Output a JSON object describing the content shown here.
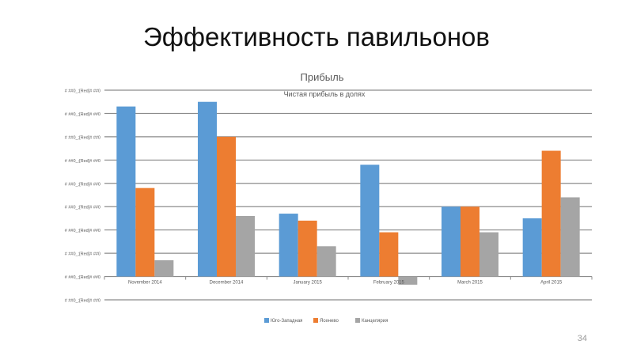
{
  "slide": {
    "title": "Эффективность павильонов",
    "page_number": "34"
  },
  "chart_data": {
    "type": "bar",
    "title": "Прибыль",
    "subtitle": "Чистая прибыль в долях",
    "categories": [
      "November 2014",
      "December 2014",
      "January 2015",
      "February 2015",
      "March 2015",
      "April 2015"
    ],
    "y_tick_labels": [
      "# ##0_;[Red]# ##0",
      "# ##0_;[Red]# ##0",
      "# ##0_;[Red]# ##0",
      "# ##0_;[Red]# ##0",
      "# ##0_;[Red]# ##0",
      "# ##0_;[Red]# ##0",
      "# ##0_;[Red]# ##0",
      "# ##0_;[Red]# ##0",
      "# ##0_;[Red]# ##0",
      "# ##0_;[Red]# ##0"
    ],
    "ylim": [
      -1,
      8
    ],
    "series": [
      {
        "name": "Юго-Западная",
        "color": "#5b9bd5",
        "values": [
          7.3,
          7.5,
          2.7,
          4.8,
          3.0,
          2.5
        ]
      },
      {
        "name": "Ясенево",
        "color": "#ed7d31",
        "values": [
          3.8,
          6.0,
          2.4,
          1.9,
          3.0,
          5.4
        ]
      },
      {
        "name": "Канцелярия",
        "color": "#a5a5a5",
        "values": [
          0.7,
          2.6,
          1.3,
          -0.35,
          1.9,
          3.4
        ]
      }
    ],
    "grid": true,
    "legend": "bottom"
  }
}
